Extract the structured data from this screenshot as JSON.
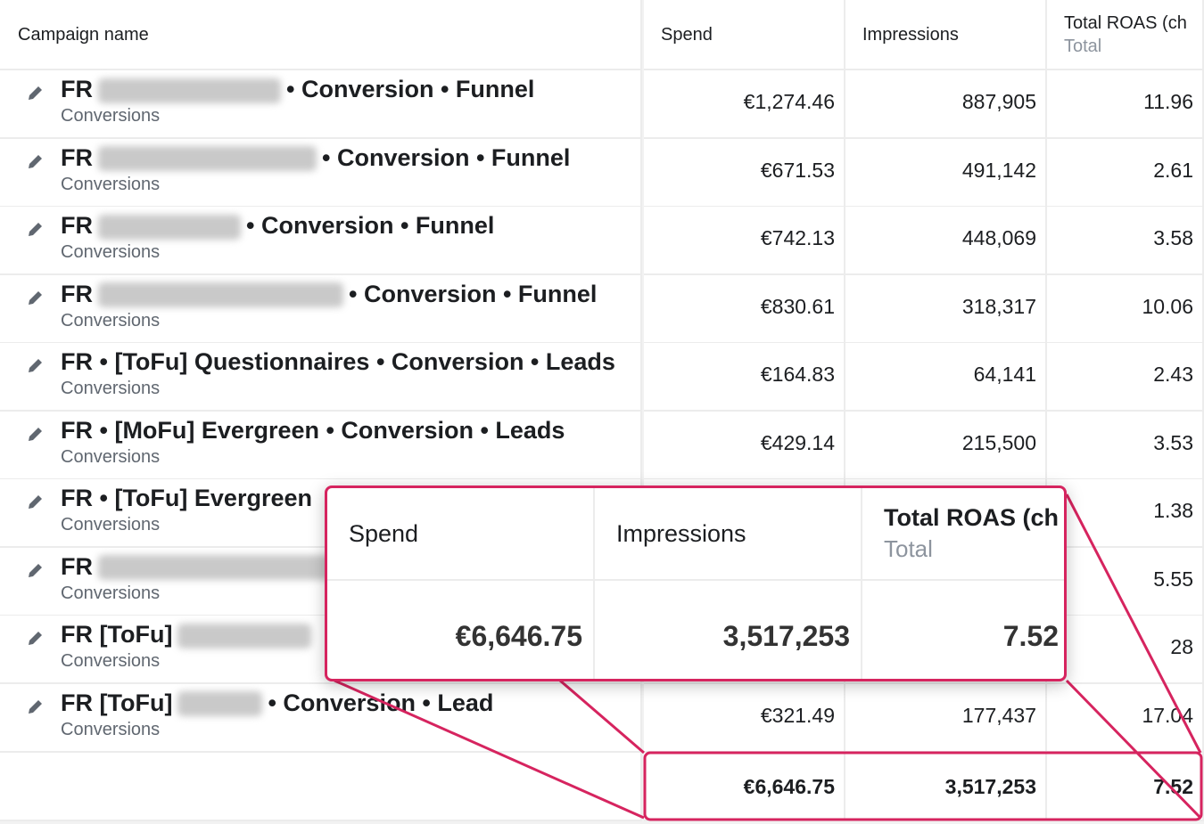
{
  "table": {
    "headers": {
      "name": "Campaign name",
      "spend": "Spend",
      "impressions": "Impressions",
      "roas": "Total ROAS (ch",
      "roas_sub": "Total"
    },
    "rows": [
      {
        "prefix": "FR",
        "suffix": "• Conversion • Funnel",
        "sub": "Conversions",
        "spend": "€1,274.46",
        "impressions": "887,905",
        "roas": "11.96"
      },
      {
        "prefix": "FR",
        "suffix": "• Conversion • Funnel",
        "sub": "Conversions",
        "spend": "€671.53",
        "impressions": "491,142",
        "roas": "2.61"
      },
      {
        "prefix": "FR",
        "suffix": "• Conversion • Funnel",
        "sub": "Conversions",
        "spend": "€742.13",
        "impressions": "448,069",
        "roas": "3.58"
      },
      {
        "prefix": "FR",
        "suffix": "• Conversion • Funnel",
        "sub": "Conversions",
        "spend": "€830.61",
        "impressions": "318,317",
        "roas": "10.06"
      },
      {
        "prefix": "FR • [ToFu] Questionnaires • Conversion • Leads",
        "sub": "Conversions",
        "spend": "€164.83",
        "impressions": "64,141",
        "roas": "2.43"
      },
      {
        "prefix": "FR • [MoFu] Evergreen • Conversion • Leads",
        "sub": "Conversions",
        "spend": "€429.14",
        "impressions": "215,500",
        "roas": "3.53"
      },
      {
        "prefix": "FR • [ToFu] Evergreen",
        "sub": "Conversions",
        "roas": "1.38"
      },
      {
        "prefix": "FR",
        "sub": "Conversions",
        "roas": "5.55"
      },
      {
        "prefix": "FR [ToFu]",
        "sub": "Conversions",
        "roas": "28"
      },
      {
        "prefix": "FR [ToFu]",
        "suffix": "• Conversion • Lead",
        "sub": "Conversions",
        "spend": "€321.49",
        "impressions": "177,437",
        "roas": "17.04"
      }
    ],
    "totals": {
      "spend": "€6,646.75",
      "impressions": "3,517,253",
      "roas": "7.52"
    }
  },
  "callout": {
    "spend": "Spend",
    "impressions": "Impressions",
    "roas": "Total ROAS (ch",
    "roas_sub": "Total",
    "spend_value": "€6,646.75",
    "impressions_value": "3,517,253",
    "roas_value": "7.52"
  }
}
